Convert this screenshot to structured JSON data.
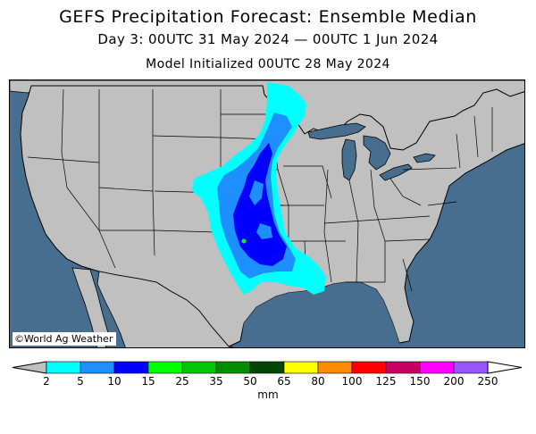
{
  "header": {
    "title": "GEFS Precipitation Forecast: Ensemble Median",
    "valid_period": "Day 3: 00UTC 31 May 2024 — 00UTC 1 Jun 2024",
    "initialized": "Model Initialized 00UTC 28 May 2024"
  },
  "map": {
    "credit": "©World Ag Weather",
    "land_color": "#c0c0c0",
    "water_color": "#476d8f",
    "border_color": "#000000"
  },
  "legend": {
    "unit": "mm",
    "under_color": "#c0c0c0",
    "over_color": "#ffffff",
    "bins": [
      {
        "label": "2",
        "color": "#00ffff"
      },
      {
        "label": "5",
        "color": "#1e8fff"
      },
      {
        "label": "10",
        "color": "#0000ff"
      },
      {
        "label": "15",
        "color": "#00ff00"
      },
      {
        "label": "25",
        "color": "#00c800"
      },
      {
        "label": "35",
        "color": "#008c00"
      },
      {
        "label": "50",
        "color": "#004600"
      },
      {
        "label": "65",
        "color": "#ffff00"
      },
      {
        "label": "80",
        "color": "#ff8c00"
      },
      {
        "label": "100",
        "color": "#ff0000"
      },
      {
        "label": "125",
        "color": "#c80064"
      },
      {
        "label": "150",
        "color": "#ff00ff"
      },
      {
        "label": "200",
        "color": "#9b55ff"
      },
      {
        "label": "250",
        "color": ""
      }
    ]
  }
}
